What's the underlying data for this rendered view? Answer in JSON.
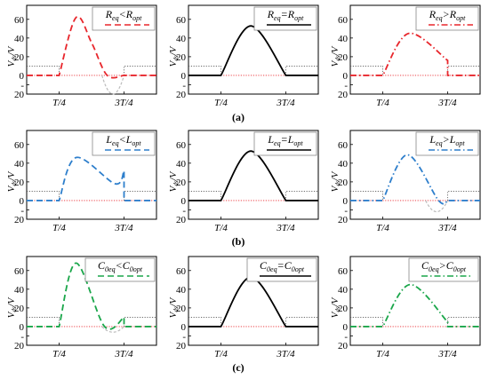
{
  "chart_data": [
    {
      "type": "line",
      "row": 0,
      "col": 0,
      "legend": {
        "text": "Req<Ropt",
        "lhs": "R",
        "lsub": "eq",
        "op": "<",
        "rhs": "R",
        "rsub": "opt"
      },
      "color": "#e8262c",
      "dash": "dash",
      "y_ticks": [
        "60",
        "40",
        "20",
        "0",
        "-",
        "20"
      ],
      "x_tick_labels": [
        "T/4",
        "3T/4"
      ],
      "ylabel": "V",
      "ylim": [
        -20,
        75
      ],
      "x": [
        0,
        0.25,
        0.38,
        0.5,
        0.62,
        0.75,
        1
      ],
      "y": [
        0,
        0,
        62,
        35,
        0,
        0,
        0
      ],
      "ghost_dip": -20
    },
    {
      "type": "line",
      "row": 0,
      "col": 1,
      "legend": {
        "text": "Req=Ropt",
        "lhs": "R",
        "lsub": "eq",
        "op": "=",
        "rhs": "R",
        "rsub": "opt"
      },
      "color": "#000000",
      "dash": "solid",
      "y_ticks": [
        "60",
        "40",
        "20",
        "0",
        "-",
        "20"
      ],
      "x_tick_labels": [
        "T/4",
        "3T/4"
      ],
      "ylabel": "V",
      "ylim": [
        -20,
        75
      ],
      "x": [
        0,
        0.25,
        0.48,
        0.75,
        1
      ],
      "y": [
        0,
        0,
        53,
        0,
        0
      ]
    },
    {
      "type": "line",
      "row": 0,
      "col": 2,
      "legend": {
        "text": "Req>Ropt",
        "lhs": "R",
        "lsub": "eq",
        "op": ">",
        "rhs": "R",
        "rsub": "opt"
      },
      "color": "#e8262c",
      "dash": "dashdot",
      "y_ticks": [
        "60",
        "40",
        "20",
        "0",
        "-",
        "20"
      ],
      "x_tick_labels": [
        "T/4",
        "3T/4"
      ],
      "ylabel": "V",
      "ylim": [
        -20,
        75
      ],
      "x": [
        0,
        0.25,
        0.45,
        0.75,
        1
      ],
      "y": [
        0,
        0,
        45,
        16,
        0
      ],
      "end_step": 0
    },
    {
      "type": "line",
      "row": 1,
      "col": 0,
      "legend": {
        "text": "Leq<Lopt",
        "lhs": "L",
        "lsub": "eq",
        "op": "<",
        "rhs": "L",
        "rsub": "opt"
      },
      "color": "#2e7fcc",
      "dash": "dash",
      "y_ticks": [
        "60",
        "40",
        "20",
        "0",
        "-",
        "20"
      ],
      "x_tick_labels": [
        "T/4",
        "3T/4"
      ],
      "ylabel": "V",
      "ylim": [
        -20,
        75
      ],
      "x": [
        0,
        0.25,
        0.38,
        0.68,
        0.75,
        1
      ],
      "y": [
        0,
        0,
        46,
        18,
        32,
        0
      ]
    },
    {
      "type": "line",
      "row": 1,
      "col": 1,
      "legend": {
        "text": "Leq=Lopt",
        "lhs": "L",
        "lsub": "eq",
        "op": "=",
        "rhs": "L",
        "rsub": "opt"
      },
      "color": "#000000",
      "dash": "solid",
      "y_ticks": [
        "60",
        "40",
        "20",
        "0",
        "-",
        "20"
      ],
      "x_tick_labels": [
        "T/4",
        "3T/4"
      ],
      "ylabel": "V",
      "ylim": [
        -20,
        75
      ],
      "x": [
        0,
        0.25,
        0.48,
        0.75,
        1
      ],
      "y": [
        0,
        0,
        53,
        0,
        0
      ]
    },
    {
      "type": "line",
      "row": 1,
      "col": 2,
      "legend": {
        "text": "Leq>Lopt",
        "lhs": "L",
        "lsub": "eq",
        "op": ">",
        "rhs": "L",
        "rsub": "opt"
      },
      "color": "#2e7fcc",
      "dash": "dashdot",
      "y_ticks": [
        "60",
        "40",
        "20",
        "0",
        "-",
        "20"
      ],
      "x_tick_labels": [
        "T/4",
        "3T/4"
      ],
      "ylabel": "V",
      "ylim": [
        -20,
        75
      ],
      "x": [
        0,
        0.25,
        0.44,
        0.68,
        0.75,
        1
      ],
      "y": [
        0,
        0,
        49,
        0,
        0,
        0
      ],
      "ghost_dip": -12
    },
    {
      "type": "line",
      "row": 2,
      "col": 0,
      "legend": {
        "text": "C0eq<C0opt",
        "lhs": "C",
        "lsub": "0eq",
        "op": "<",
        "rhs": "C",
        "rsub": "0opt"
      },
      "color": "#1aa64a",
      "dash": "dash",
      "y_ticks": [
        "60",
        "40",
        "20",
        "0",
        "-",
        "20"
      ],
      "x_tick_labels": [
        "T/4",
        "3T/4"
      ],
      "ylabel": "V",
      "ylim": [
        -20,
        75
      ],
      "x": [
        0,
        0.25,
        0.38,
        0.6,
        0.75,
        1
      ],
      "y": [
        0,
        0,
        68,
        0,
        10,
        0
      ],
      "ghost_dip": -6
    },
    {
      "type": "line",
      "row": 2,
      "col": 1,
      "legend": {
        "text": "C0eq=C0opt",
        "lhs": "C",
        "lsub": "0eq",
        "op": "=",
        "rhs": "C",
        "rsub": "0opt"
      },
      "color": "#000000",
      "dash": "solid",
      "y_ticks": [
        "60",
        "40",
        "20",
        "0",
        "-",
        "20"
      ],
      "x_tick_labels": [
        "T/4",
        "3T/4"
      ],
      "ylabel": "V",
      "ylim": [
        -20,
        75
      ],
      "x": [
        0,
        0.25,
        0.48,
        0.75,
        1
      ],
      "y": [
        0,
        0,
        53,
        0,
        0
      ]
    },
    {
      "type": "line",
      "row": 2,
      "col": 2,
      "legend": {
        "text": "C0eq>C0opt",
        "lhs": "C",
        "lsub": "0eq",
        "op": ">",
        "rhs": "C",
        "rsub": "0opt"
      },
      "color": "#1aa64a",
      "dash": "dashdot",
      "y_ticks": [
        "60",
        "40",
        "20",
        "0",
        "-",
        "20"
      ],
      "x_tick_labels": [
        "T/4",
        "3T/4"
      ],
      "ylabel": "V",
      "ylim": [
        -20,
        75
      ],
      "x": [
        0,
        0.25,
        0.46,
        0.75,
        1
      ],
      "y": [
        0,
        0,
        45,
        5,
        0
      ]
    }
  ],
  "row_labels": [
    "(a)",
    "(b)",
    "(c)"
  ],
  "ylabel_main": "V",
  "ylabel_sub": "ds",
  "ylabel_suffix": "/V",
  "reference_lines": {
    "zero_color": "#e8262c",
    "gate_color": "#555555",
    "gate_level": 10
  }
}
